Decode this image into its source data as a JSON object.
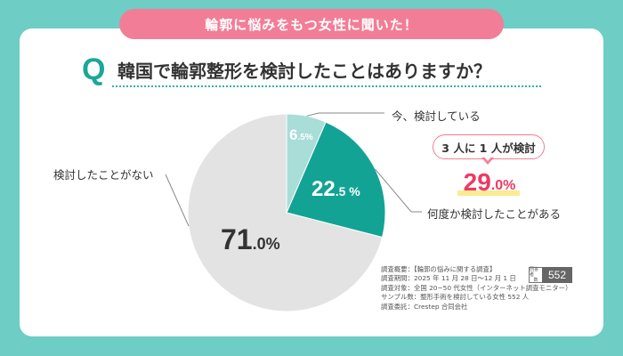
{
  "banner": {
    "text": "輪郭に悩みをもつ女性に聞いた！"
  },
  "question": {
    "mark": "Q",
    "text": "韓国で輪郭整形を検討したことはありますか？"
  },
  "chart_data": {
    "type": "pie",
    "title": "韓国で輪郭整形を検討したことはありますか？",
    "slices": [
      {
        "label": "今、検討している",
        "value": 6.5,
        "value_main": "6",
        "value_rest": ".5%",
        "color": "#a8ddd8",
        "text_color": "#ffffff"
      },
      {
        "label": "何度か検討したことがある",
        "value": 22.5,
        "value_main": "22",
        "value_rest": ".5 %",
        "color": "#12a394",
        "text_color": "#ffffff"
      },
      {
        "label": "検討したことがない",
        "value": 71.0,
        "value_main": "71",
        "value_rest": ".0%",
        "color": "#e3e3e3",
        "text_color": "#333333"
      }
    ],
    "start_angle_deg": 0,
    "direction": "clockwise"
  },
  "callout": {
    "bubble_text": "3 人に 1 人が検討",
    "value_main": "29",
    "value_rest": ".0%",
    "color": "#ee3a62"
  },
  "survey": {
    "lines": [
      "調査概要：【輪郭の悩みに関する調査】",
      "調査期間：2025 年 11 月 28 日～12 月 1 日",
      "調査対象：全国 20~50 代女性（インターネット調査モニター）",
      "サンプル数：整形手術を検討している女性 552 人",
      "調査委託：Crestep 合同会社"
    ],
    "badge_label_top": "回答者",
    "badge_label_bottom": "数",
    "badge_number": "552"
  }
}
